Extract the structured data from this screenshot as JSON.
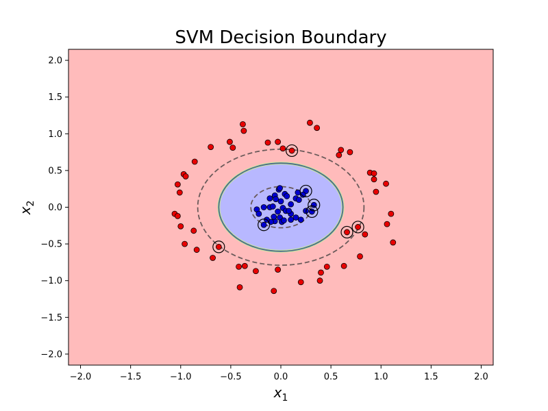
{
  "chart_data": {
    "type": "scatter",
    "title": "SVM Decision Boundary",
    "xlabel_main": "x",
    "xlabel_sub": "1",
    "ylabel_main": "x",
    "ylabel_sub": "2",
    "xlim": [
      -2.12,
      2.12
    ],
    "ylim": [
      -2.15,
      2.15
    ],
    "xticks": [
      -2.0,
      -1.5,
      -1.0,
      -0.5,
      0.0,
      0.5,
      1.0,
      1.5,
      2.0
    ],
    "yticks": [
      -2.0,
      -1.5,
      -1.0,
      -0.5,
      0.0,
      0.5,
      1.0,
      1.5,
      2.0
    ],
    "xtick_labels": [
      "−2.0",
      "−1.5",
      "−1.0",
      "−0.5",
      "0.0",
      "0.5",
      "1.0",
      "1.5",
      "2.0"
    ],
    "ytick_labels": [
      "−2.0",
      "−1.5",
      "−1.0",
      "−0.5",
      "0.0",
      "0.5",
      "1.0",
      "1.5",
      "2.0"
    ],
    "grid": false,
    "colors": {
      "outer_region": "#ffbbbb",
      "inner_region": "#b8b8ff",
      "class_outer_points": "#e80000",
      "class_inner_points": "#0000d0",
      "boundary": "#4a6a8a",
      "margin": "#6a5a5a"
    },
    "decision_boundary": {
      "cx": 0.0,
      "cy": 0.0,
      "rx": 0.62,
      "ry": 0.6
    },
    "margin_outer": {
      "cx": 0.0,
      "cy": 0.0,
      "rx": 0.83,
      "ry": 0.79
    },
    "margin_inner": {
      "cx": 0.0,
      "cy": 0.0,
      "rx": 0.3,
      "ry": 0.28
    },
    "series": [
      {
        "class": "outer",
        "points": [
          [
            -0.38,
            1.13
          ],
          [
            -0.37,
            1.04
          ],
          [
            0.29,
            1.15
          ],
          [
            0.36,
            1.08
          ],
          [
            -0.7,
            0.82
          ],
          [
            -0.51,
            0.89
          ],
          [
            -0.48,
            0.81
          ],
          [
            -0.13,
            0.88
          ],
          [
            -0.03,
            0.89
          ],
          [
            0.02,
            0.8
          ],
          [
            0.11,
            0.77
          ],
          [
            0.6,
            0.78
          ],
          [
            0.58,
            0.71
          ],
          [
            0.69,
            0.75
          ],
          [
            -0.86,
            0.62
          ],
          [
            -0.97,
            0.45
          ],
          [
            -0.95,
            0.42
          ],
          [
            0.89,
            0.47
          ],
          [
            0.93,
            0.46
          ],
          [
            0.93,
            0.38
          ],
          [
            1.05,
            0.32
          ],
          [
            0.95,
            0.21
          ],
          [
            -1.03,
            0.31
          ],
          [
            -1.01,
            0.2
          ],
          [
            -1.06,
            -0.09
          ],
          [
            -1.03,
            -0.12
          ],
          [
            -1.0,
            -0.26
          ],
          [
            -0.87,
            -0.32
          ],
          [
            1.1,
            -0.09
          ],
          [
            1.06,
            -0.23
          ],
          [
            0.77,
            -0.27
          ],
          [
            0.66,
            -0.34
          ],
          [
            0.84,
            -0.37
          ],
          [
            -0.96,
            -0.5
          ],
          [
            -0.84,
            -0.58
          ],
          [
            -0.62,
            -0.54
          ],
          [
            1.12,
            -0.48
          ],
          [
            -0.68,
            -0.69
          ],
          [
            0.79,
            -0.67
          ],
          [
            -0.42,
            -0.81
          ],
          [
            -0.36,
            -0.8
          ],
          [
            0.46,
            -0.81
          ],
          [
            0.63,
            -0.8
          ],
          [
            -0.25,
            -0.87
          ],
          [
            -0.03,
            -0.85
          ],
          [
            0.4,
            -0.89
          ],
          [
            -0.41,
            -1.09
          ],
          [
            0.2,
            -1.02
          ],
          [
            0.39,
            -1.0
          ],
          [
            -0.07,
            -1.14
          ]
        ]
      },
      {
        "class": "inner",
        "points": [
          [
            -0.02,
            0.24
          ],
          [
            -0.01,
            0.26
          ],
          [
            0.25,
            0.22
          ],
          [
            0.22,
            0.17
          ],
          [
            0.17,
            0.2
          ],
          [
            0.04,
            0.18
          ],
          [
            0.06,
            0.15
          ],
          [
            -0.06,
            0.16
          ],
          [
            -0.11,
            0.12
          ],
          [
            -0.05,
            0.11
          ],
          [
            0.0,
            0.08
          ],
          [
            0.15,
            0.12
          ],
          [
            0.18,
            0.1
          ],
          [
            0.1,
            0.04
          ],
          [
            0.33,
            0.03
          ],
          [
            0.31,
            -0.06
          ],
          [
            -0.24,
            -0.03
          ],
          [
            -0.22,
            -0.09
          ],
          [
            -0.17,
            0.0
          ],
          [
            -0.11,
            0.0
          ],
          [
            -0.08,
            0.01
          ],
          [
            0.02,
            -0.01
          ],
          [
            0.05,
            -0.05
          ],
          [
            -0.03,
            -0.06
          ],
          [
            0.1,
            -0.09
          ],
          [
            0.15,
            -0.14
          ],
          [
            0.2,
            -0.17
          ],
          [
            0.1,
            -0.17
          ],
          [
            -0.01,
            -0.14
          ],
          [
            -0.06,
            -0.19
          ],
          [
            -0.1,
            -0.2
          ],
          [
            -0.14,
            -0.17
          ],
          [
            -0.17,
            -0.24
          ],
          [
            0.01,
            -0.2
          ],
          [
            0.03,
            -0.18
          ],
          [
            -0.07,
            -0.13
          ],
          [
            0.08,
            -0.05
          ],
          [
            0.25,
            -0.05
          ]
        ]
      }
    ],
    "support_vectors": [
      [
        0.11,
        0.77
      ],
      [
        0.25,
        0.22
      ],
      [
        0.33,
        0.03
      ],
      [
        0.31,
        -0.06
      ],
      [
        -0.17,
        -0.24
      ],
      [
        0.66,
        -0.34
      ],
      [
        0.77,
        -0.27
      ],
      [
        -0.62,
        -0.54
      ]
    ]
  }
}
